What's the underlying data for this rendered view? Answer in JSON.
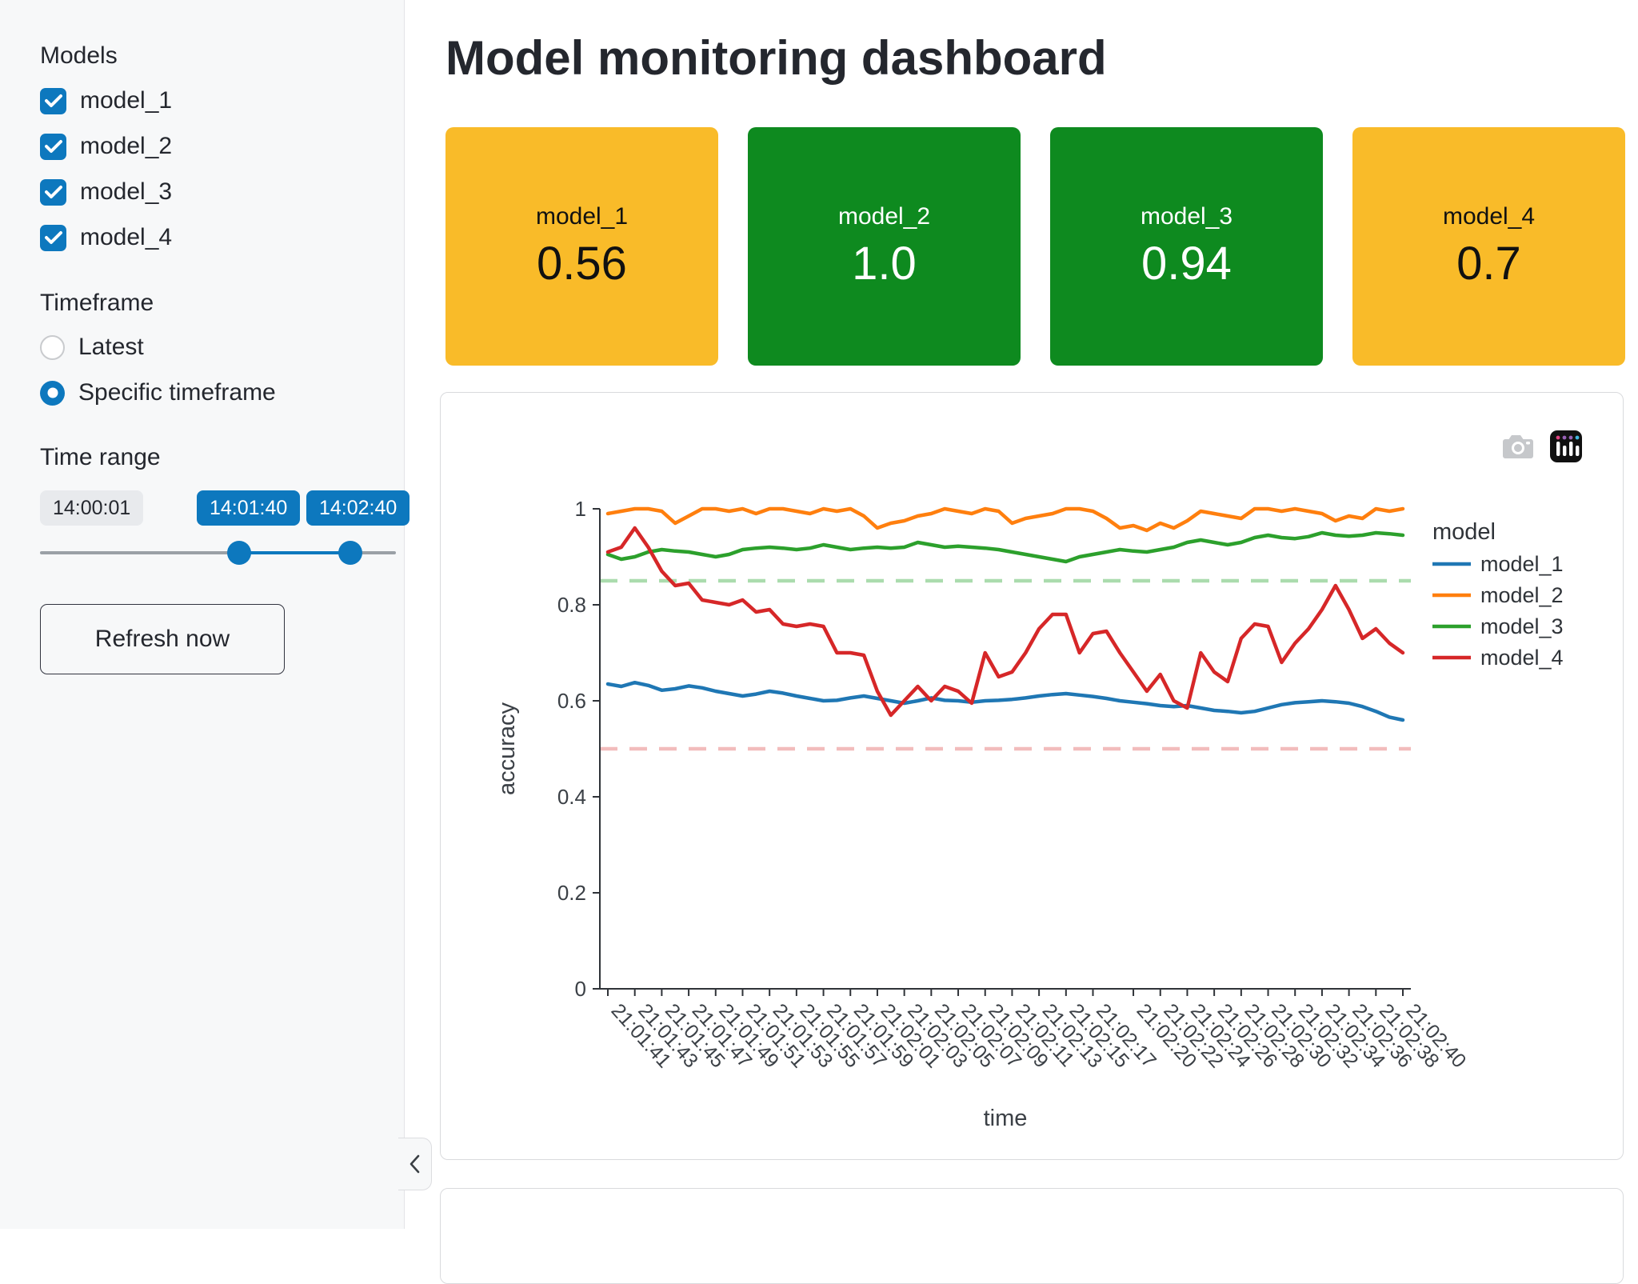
{
  "sidebar": {
    "models_label": "Models",
    "models": [
      {
        "label": "model_1",
        "checked": true
      },
      {
        "label": "model_2",
        "checked": true
      },
      {
        "label": "model_3",
        "checked": true
      },
      {
        "label": "model_4",
        "checked": true
      }
    ],
    "timeframe_label": "Timeframe",
    "timeframe_options": [
      {
        "label": "Latest",
        "selected": false
      },
      {
        "label": "Specific timeframe",
        "selected": true
      }
    ],
    "time_range_label": "Time range",
    "slider": {
      "min_label": "14:00:01",
      "start_value": "14:01:40",
      "end_value": "14:02:40"
    },
    "refresh_button_label": "Refresh now"
  },
  "header": {
    "title": "Model monitoring dashboard"
  },
  "metric_cards": [
    {
      "label": "model_1",
      "value": "0.56",
      "bg": "#f9bb29",
      "text": "#111111"
    },
    {
      "label": "model_2",
      "value": "1.0",
      "bg": "#0e8a1f",
      "text": "#ffffff"
    },
    {
      "label": "model_3",
      "value": "0.94",
      "bg": "#0e8a1f",
      "text": "#ffffff"
    },
    {
      "label": "model_4",
      "value": "0.7",
      "bg": "#f9bb29",
      "text": "#111111"
    }
  ],
  "modebar_icons": [
    "camera-icon",
    "plotly-logo-icon"
  ],
  "colors": {
    "primary": "#0d78be",
    "card_warn": "#f9bb29",
    "card_ok": "#0e8a1f"
  },
  "chart_data": {
    "type": "line",
    "title": "",
    "xlabel": "time",
    "ylabel": "accuracy",
    "legend_title": "model",
    "ylim": [
      0,
      1
    ],
    "yticks": [
      0,
      0.2,
      0.4,
      0.6,
      0.8,
      1
    ],
    "grid": false,
    "legend_position": "right",
    "x": [
      "21:01:41",
      "21:01:42",
      "21:01:43",
      "21:01:44",
      "21:01:45",
      "21:01:46",
      "21:01:47",
      "21:01:48",
      "21:01:49",
      "21:01:50",
      "21:01:51",
      "21:01:52",
      "21:01:53",
      "21:01:54",
      "21:01:55",
      "21:01:56",
      "21:01:57",
      "21:01:58",
      "21:01:59",
      "21:02:00",
      "21:02:01",
      "21:02:02",
      "21:02:03",
      "21:02:04",
      "21:02:05",
      "21:02:06",
      "21:02:07",
      "21:02:08",
      "21:02:09",
      "21:02:10",
      "21:02:11",
      "21:02:12",
      "21:02:13",
      "21:02:14",
      "21:02:15",
      "21:02:16",
      "21:02:17",
      "21:02:18",
      "21:02:19",
      "21:02:20",
      "21:02:21",
      "21:02:22",
      "21:02:23",
      "21:02:24",
      "21:02:25",
      "21:02:26",
      "21:02:27",
      "21:02:28",
      "21:02:29",
      "21:02:30",
      "21:02:31",
      "21:02:32",
      "21:02:33",
      "21:02:34",
      "21:02:35",
      "21:02:36",
      "21:02:37",
      "21:02:38",
      "21:02:39",
      "21:02:40"
    ],
    "tick_labels": [
      "21:01:41",
      "21:01:43",
      "21:01:45",
      "21:01:47",
      "21:01:49",
      "21:01:51",
      "21:01:53",
      "21:01:55",
      "21:01:57",
      "21:01:59",
      "21:02:01",
      "21:02:03",
      "21:02:05",
      "21:02:07",
      "21:02:09",
      "21:02:11",
      "21:02:13",
      "21:02:15",
      "21:02:17",
      "21:02:20",
      "21:02:22",
      "21:02:24",
      "21:02:26",
      "21:02:28",
      "21:02:30",
      "21:02:32",
      "21:02:34",
      "21:02:36",
      "21:02:38",
      "21:02:40"
    ],
    "series": [
      {
        "name": "model_1",
        "color": "#1f77b4",
        "values": [
          0.635,
          0.63,
          0.638,
          0.632,
          0.622,
          0.625,
          0.631,
          0.627,
          0.62,
          0.615,
          0.61,
          0.614,
          0.62,
          0.616,
          0.61,
          0.605,
          0.6,
          0.601,
          0.606,
          0.61,
          0.605,
          0.6,
          0.595,
          0.6,
          0.606,
          0.601,
          0.6,
          0.597,
          0.6,
          0.601,
          0.603,
          0.606,
          0.61,
          0.613,
          0.615,
          0.612,
          0.609,
          0.605,
          0.6,
          0.597,
          0.594,
          0.59,
          0.588,
          0.59,
          0.585,
          0.58,
          0.578,
          0.575,
          0.578,
          0.585,
          0.592,
          0.596,
          0.598,
          0.6,
          0.598,
          0.595,
          0.588,
          0.578,
          0.566,
          0.56
        ]
      },
      {
        "name": "model_2",
        "color": "#ff7f0e",
        "values": [
          0.99,
          0.995,
          1.0,
          1.0,
          0.995,
          0.97,
          0.985,
          1.0,
          1.0,
          0.995,
          1.0,
          0.99,
          1.0,
          1.0,
          0.995,
          0.99,
          1.0,
          0.995,
          1.0,
          0.985,
          0.96,
          0.97,
          0.975,
          0.985,
          0.99,
          1.0,
          0.995,
          0.99,
          1.0,
          0.995,
          0.97,
          0.98,
          0.985,
          0.99,
          1.0,
          1.0,
          0.995,
          0.98,
          0.96,
          0.965,
          0.955,
          0.97,
          0.96,
          0.975,
          0.995,
          0.99,
          0.985,
          0.98,
          1.0,
          1.0,
          0.995,
          1.0,
          0.995,
          0.99,
          0.975,
          0.985,
          0.98,
          1.0,
          0.995,
          1.0
        ]
      },
      {
        "name": "model_3",
        "color": "#2ca02c",
        "values": [
          0.905,
          0.895,
          0.9,
          0.91,
          0.915,
          0.912,
          0.91,
          0.905,
          0.9,
          0.905,
          0.915,
          0.918,
          0.92,
          0.918,
          0.915,
          0.918,
          0.925,
          0.92,
          0.915,
          0.918,
          0.92,
          0.918,
          0.92,
          0.93,
          0.925,
          0.92,
          0.922,
          0.92,
          0.918,
          0.915,
          0.91,
          0.905,
          0.9,
          0.895,
          0.89,
          0.9,
          0.905,
          0.91,
          0.915,
          0.912,
          0.91,
          0.915,
          0.92,
          0.93,
          0.935,
          0.93,
          0.925,
          0.93,
          0.94,
          0.945,
          0.94,
          0.938,
          0.942,
          0.95,
          0.945,
          0.943,
          0.945,
          0.95,
          0.948,
          0.945
        ]
      },
      {
        "name": "model_4",
        "color": "#d62728",
        "values": [
          0.91,
          0.92,
          0.96,
          0.92,
          0.87,
          0.84,
          0.845,
          0.81,
          0.805,
          0.8,
          0.81,
          0.785,
          0.79,
          0.76,
          0.755,
          0.76,
          0.755,
          0.7,
          0.7,
          0.695,
          0.62,
          0.57,
          0.6,
          0.63,
          0.6,
          0.63,
          0.62,
          0.595,
          0.7,
          0.65,
          0.66,
          0.7,
          0.75,
          0.78,
          0.78,
          0.7,
          0.74,
          0.745,
          0.7,
          0.66,
          0.62,
          0.655,
          0.6,
          0.585,
          0.7,
          0.66,
          0.64,
          0.73,
          0.76,
          0.755,
          0.68,
          0.72,
          0.75,
          0.79,
          0.84,
          0.79,
          0.73,
          0.75,
          0.72,
          0.7
        ]
      }
    ],
    "reference_lines": [
      {
        "value": 0.85,
        "color": "#abdcae",
        "style": "dashed"
      },
      {
        "value": 0.5,
        "color": "#f2bcbc",
        "style": "dashed"
      }
    ]
  }
}
